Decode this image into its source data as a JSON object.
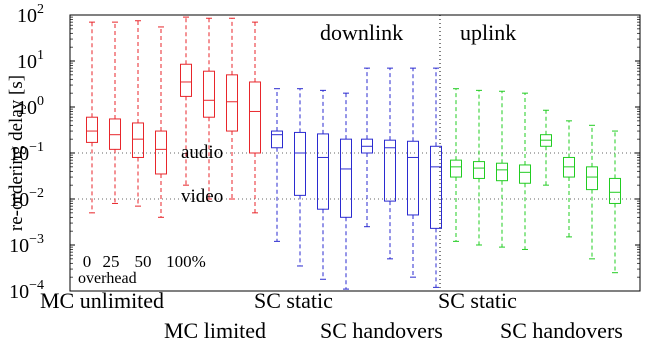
{
  "chart_data": {
    "type": "box",
    "ylabel": "re-ordering delay [s]",
    "yscale": "log",
    "ylim": [
      0.0001,
      100
    ],
    "yticks": [
      {
        "value": 0.0001,
        "base": "10",
        "exp": "−4"
      },
      {
        "value": 0.001,
        "base": "10",
        "exp": "−3"
      },
      {
        "value": 0.01,
        "base": "10",
        "exp": "−2"
      },
      {
        "value": 0.1,
        "base": "10",
        "exp": "−1"
      },
      {
        "value": 1,
        "base": "10",
        "exp": "0"
      },
      {
        "value": 10,
        "base": "10",
        "exp": "1"
      },
      {
        "value": 100,
        "base": "10",
        "exp": "2"
      }
    ],
    "overhead_labels": [
      "0",
      "25",
      "50",
      "100%"
    ],
    "overhead_caption": "overhead",
    "reference_lines": [
      {
        "label": "audio",
        "value": 0.1
      },
      {
        "label": "video",
        "value": 0.01
      }
    ],
    "sections": [
      {
        "label": "downlink"
      },
      {
        "label": "uplink"
      }
    ],
    "groups": [
      {
        "label": "MC unlimited",
        "color": "#e8262b",
        "boxes": [
          {
            "overhead": "0",
            "whislo": 0.005,
            "q1": 0.17,
            "med": 0.3,
            "q3": 0.6,
            "whishi": 70
          },
          {
            "overhead": "25",
            "whislo": 0.008,
            "q1": 0.12,
            "med": 0.25,
            "q3": 0.55,
            "whishi": 70
          },
          {
            "overhead": "50",
            "whislo": 0.007,
            "q1": 0.08,
            "med": 0.2,
            "q3": 0.45,
            "whishi": 75
          },
          {
            "overhead": "100%",
            "whislo": 0.004,
            "q1": 0.035,
            "med": 0.12,
            "q3": 0.3,
            "whishi": 55
          }
        ]
      },
      {
        "label": "MC limited",
        "color": "#e8262b",
        "boxes": [
          {
            "overhead": "0",
            "whislo": 0.02,
            "q1": 1.7,
            "med": 3.5,
            "q3": 8.5,
            "whishi": 90
          },
          {
            "overhead": "25",
            "whislo": 0.01,
            "q1": 0.6,
            "med": 1.4,
            "q3": 6.0,
            "whishi": 85
          },
          {
            "overhead": "50",
            "whislo": 0.01,
            "q1": 0.3,
            "med": 1.3,
            "q3": 5.0,
            "whishi": 85
          },
          {
            "overhead": "100%",
            "whislo": 0.005,
            "q1": 0.1,
            "med": 0.8,
            "q3": 3.5,
            "whishi": 70
          }
        ]
      },
      {
        "label": "SC static",
        "color": "#2b2bd0",
        "boxes": [
          {
            "overhead": "0",
            "whislo": 0.0012,
            "q1": 0.13,
            "med": 0.25,
            "q3": 0.3,
            "whishi": 2.5
          },
          {
            "overhead": "25",
            "whislo": 0.00035,
            "q1": 0.012,
            "med": 0.1,
            "q3": 0.28,
            "whishi": 2.5
          },
          {
            "overhead": "50",
            "whislo": 0.00018,
            "q1": 0.006,
            "med": 0.08,
            "q3": 0.26,
            "whishi": 2.3
          },
          {
            "overhead": "100%",
            "whislo": 0.00011,
            "q1": 0.004,
            "med": 0.045,
            "q3": 0.2,
            "whishi": 2.0
          }
        ]
      },
      {
        "label": "SC handovers",
        "color": "#2b2bd0",
        "boxes": [
          {
            "overhead": "0",
            "whislo": 0.0025,
            "q1": 0.1,
            "med": 0.14,
            "q3": 0.2,
            "whishi": 7.0
          },
          {
            "overhead": "25",
            "whislo": 0.0005,
            "q1": 0.009,
            "med": 0.13,
            "q3": 0.19,
            "whishi": 7.0
          },
          {
            "overhead": "50",
            "whislo": 0.0002,
            "q1": 0.0045,
            "med": 0.08,
            "q3": 0.18,
            "whishi": 7.0
          },
          {
            "overhead": "100%",
            "whislo": 0.00012,
            "q1": 0.0023,
            "med": 0.05,
            "q3": 0.14,
            "whishi": 7.0
          }
        ]
      },
      {
        "label": "SC static",
        "color": "#22cc22",
        "boxes": [
          {
            "overhead": "0",
            "whislo": 0.0012,
            "q1": 0.03,
            "med": 0.05,
            "q3": 0.07,
            "whishi": 2.5
          },
          {
            "overhead": "25",
            "whislo": 0.001,
            "q1": 0.028,
            "med": 0.047,
            "q3": 0.065,
            "whishi": 2.3
          },
          {
            "overhead": "50",
            "whislo": 0.0009,
            "q1": 0.025,
            "med": 0.043,
            "q3": 0.06,
            "whishi": 2.2
          },
          {
            "overhead": "100%",
            "whislo": 0.0008,
            "q1": 0.022,
            "med": 0.038,
            "q3": 0.055,
            "whishi": 2.0
          }
        ]
      },
      {
        "label": "SC handovers",
        "color": "#22cc22",
        "boxes": [
          {
            "overhead": "0",
            "whislo": 0.02,
            "q1": 0.14,
            "med": 0.19,
            "q3": 0.25,
            "whishi": 0.85
          },
          {
            "overhead": "25",
            "whislo": 0.0015,
            "q1": 0.03,
            "med": 0.05,
            "q3": 0.08,
            "whishi": 0.5
          },
          {
            "overhead": "50",
            "whislo": 0.0005,
            "q1": 0.016,
            "med": 0.03,
            "q3": 0.05,
            "whishi": 0.4
          },
          {
            "overhead": "100%",
            "whislo": 0.00025,
            "q1": 0.008,
            "med": 0.014,
            "q3": 0.028,
            "whishi": 0.3
          }
        ]
      }
    ]
  }
}
